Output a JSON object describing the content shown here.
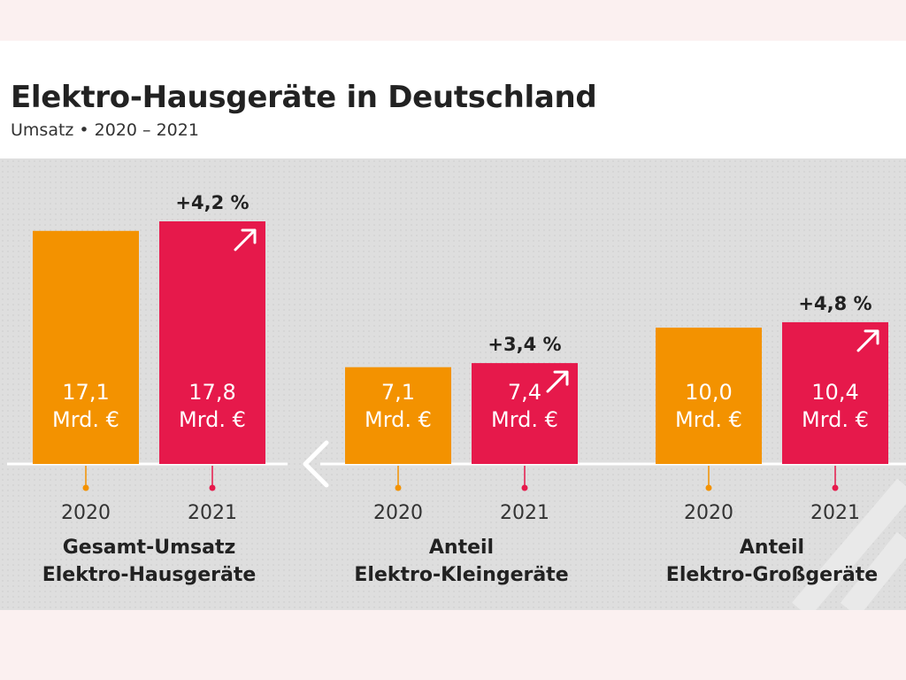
{
  "header": {
    "title": "Elektro-Hausgeräte in Deutschland",
    "subtitle": "Umsatz • 2020 – 2021"
  },
  "colors": {
    "bar_2020": "#f39200",
    "bar_2021": "#e6194b",
    "panel_bg": "#dedede",
    "page_bg": "#fbf0f0",
    "text_dark": "#222222"
  },
  "icons": [
    "arrow-up-right-icon",
    "arrow-left-icon"
  ],
  "chart_data": [
    {
      "type": "bar",
      "categories": [
        "2020",
        "2021"
      ],
      "values": [
        17.1,
        17.8
      ],
      "value_labels": [
        "17,1",
        "17,8"
      ],
      "unit_label": "Mrd. €",
      "change_label": "+4,2 %",
      "group_label": [
        "Gesamt-Umsatz",
        "Elektro-Hausgeräte"
      ]
    },
    {
      "type": "bar",
      "categories": [
        "2020",
        "2021"
      ],
      "values": [
        7.1,
        7.4
      ],
      "value_labels": [
        "7,1",
        "7,4"
      ],
      "unit_label": "Mrd. €",
      "change_label": "+3,4 %",
      "group_label": [
        "Anteil",
        "Elektro-Kleingeräte"
      ]
    },
    {
      "type": "bar",
      "categories": [
        "2020",
        "2021"
      ],
      "values": [
        10.0,
        10.4
      ],
      "value_labels": [
        "10,0",
        "10,4"
      ],
      "unit_label": "Mrd. €",
      "change_label": "+4,8 %",
      "group_label": [
        "Anteil",
        "Elektro-Großgeräte"
      ]
    }
  ]
}
